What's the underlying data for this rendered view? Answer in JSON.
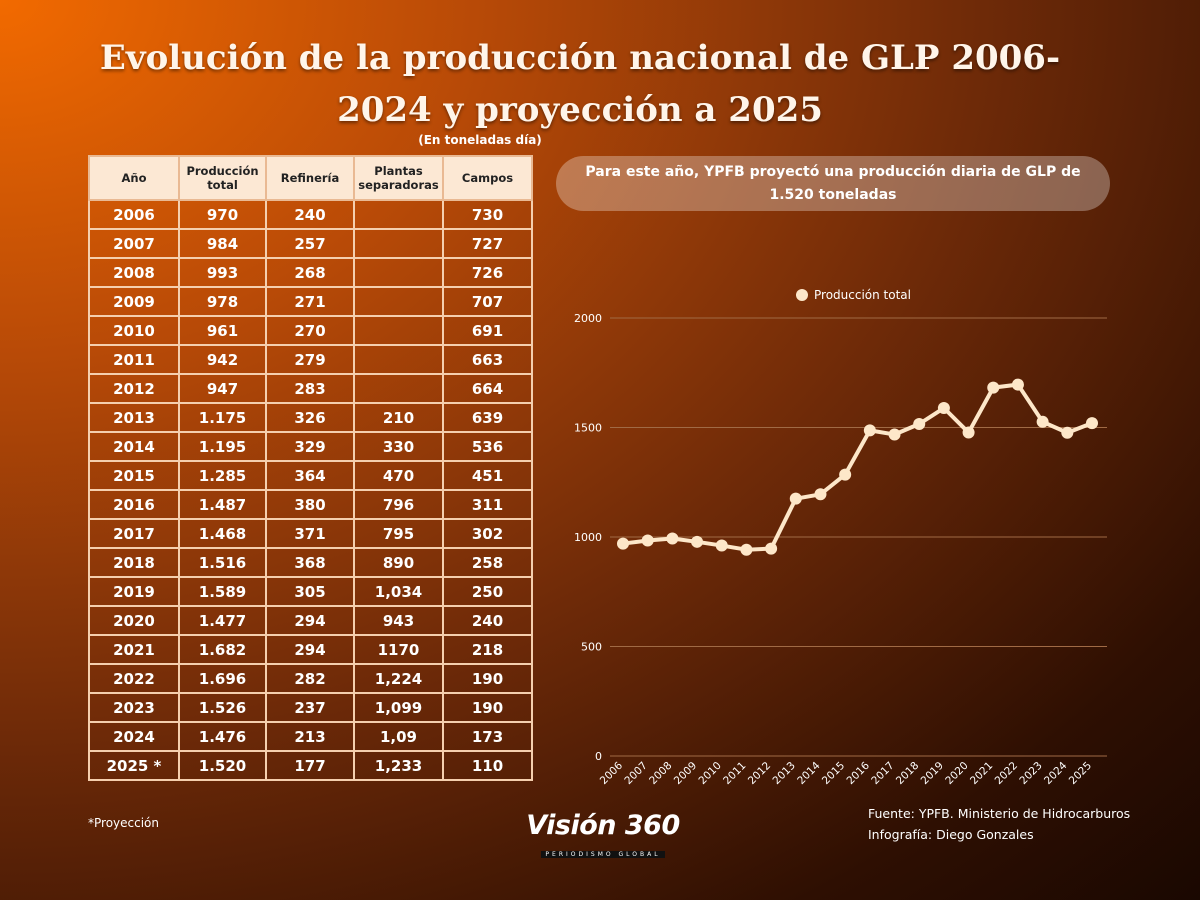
{
  "title": "Evolución de la producción nacional de GLP 2006-2024 y proyección a 2025",
  "unit_note": "(En toneladas día)",
  "table": {
    "headers": [
      "Año",
      "Producción total",
      "Refinería",
      "Plantas separadoras",
      "Campos"
    ],
    "rows": [
      [
        "2006",
        "970",
        "240",
        "",
        "730"
      ],
      [
        "2007",
        "984",
        "257",
        "",
        "727"
      ],
      [
        "2008",
        "993",
        "268",
        "",
        "726"
      ],
      [
        "2009",
        "978",
        "271",
        "",
        "707"
      ],
      [
        "2010",
        "961",
        "270",
        "",
        "691"
      ],
      [
        "2011",
        "942",
        "279",
        "",
        "663"
      ],
      [
        "2012",
        "947",
        "283",
        "",
        "664"
      ],
      [
        "2013",
        "1.175",
        "326",
        "210",
        "639"
      ],
      [
        "2014",
        "1.195",
        "329",
        "330",
        "536"
      ],
      [
        "2015",
        "1.285",
        "364",
        "470",
        "451"
      ],
      [
        "2016",
        "1.487",
        "380",
        "796",
        "311"
      ],
      [
        "2017",
        "1.468",
        "371",
        "795",
        "302"
      ],
      [
        "2018",
        "1.516",
        "368",
        "890",
        "258"
      ],
      [
        "2019",
        "1.589",
        "305",
        "1,034",
        "250"
      ],
      [
        "2020",
        "1.477",
        "294",
        "943",
        "240"
      ],
      [
        "2021",
        "1.682",
        "294",
        "1170",
        "218"
      ],
      [
        "2022",
        "1.696",
        "282",
        "1,224",
        "190"
      ],
      [
        "2023",
        "1.526",
        "237",
        "1,099",
        "190"
      ],
      [
        "2024",
        "1.476",
        "213",
        "1,09",
        "173"
      ],
      [
        "2025 *",
        "1.520",
        "177",
        "1,233",
        "110"
      ]
    ]
  },
  "footnote": "*Proyección",
  "callout": "Para este año, YPFB proyectó una producción diaria de GLP de 1.520 toneladas",
  "source": "Fuente: YPFB. Ministerio de Hidrocarburos",
  "credit": "Infografía: Diego Gonzales",
  "logo": {
    "main": "Visión 360",
    "sub": "PERIODISMO GLOBAL"
  },
  "colors": {
    "line": "#fde7c9",
    "grid": "#a06a45",
    "header_bg": "#fce8d4"
  },
  "chart_data": {
    "type": "line",
    "x": [
      "2006",
      "2007",
      "2008",
      "2009",
      "2010",
      "2011",
      "2012",
      "2013",
      "2014",
      "2015",
      "2016",
      "2017",
      "2018",
      "2019",
      "2020",
      "2021",
      "2022",
      "2023",
      "2024",
      "2025"
    ],
    "series": [
      {
        "name": "Producción total",
        "values": [
          970,
          984,
          993,
          978,
          961,
          942,
          947,
          1175,
          1195,
          1285,
          1487,
          1468,
          1516,
          1589,
          1477,
          1682,
          1696,
          1526,
          1476,
          1520
        ]
      }
    ],
    "yticks": [
      "0",
      "500",
      "1000",
      "1500",
      "2000"
    ],
    "ylim": [
      0,
      2000
    ],
    "grid": true,
    "legend_position": "top"
  }
}
